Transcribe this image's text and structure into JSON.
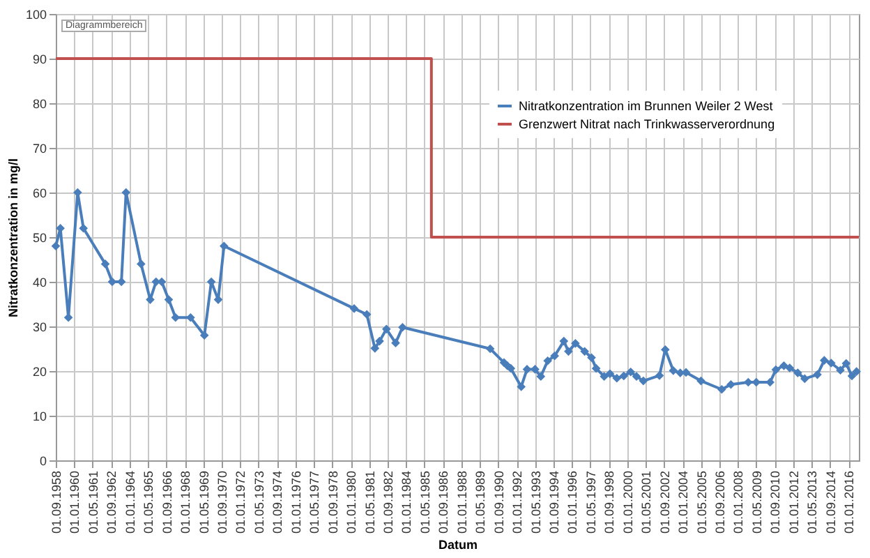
{
  "chart_data": {
    "type": "line",
    "xlabel": "Datum",
    "ylabel": "Nitratkonzentration in mg/l",
    "annotations": [
      "Diagrammbereich"
    ],
    "xlim": [
      "1958-09-01",
      "2016-10-01"
    ],
    "ylim": [
      0,
      100
    ],
    "yticks": [
      0,
      10,
      20,
      30,
      40,
      50,
      60,
      70,
      80,
      90,
      100
    ],
    "xticks": [
      {
        "value": "1958-09-01",
        "label": "01.09.1958"
      },
      {
        "value": "1960-01-01",
        "label": "01.01.1960"
      },
      {
        "value": "1961-05-01",
        "label": "01.05.1961"
      },
      {
        "value": "1962-09-01",
        "label": "01.09.1962"
      },
      {
        "value": "1964-01-01",
        "label": "01.01.1964"
      },
      {
        "value": "1965-05-01",
        "label": "01.05.1965"
      },
      {
        "value": "1966-09-01",
        "label": "01.09.1966"
      },
      {
        "value": "1968-01-01",
        "label": "01.01.1968"
      },
      {
        "value": "1969-05-01",
        "label": "01.05.1969"
      },
      {
        "value": "1970-09-01",
        "label": "01.09.1970"
      },
      {
        "value": "1972-01-01",
        "label": "01.01.1972"
      },
      {
        "value": "1973-05-01",
        "label": "01.05.1973"
      },
      {
        "value": "1974-09-01",
        "label": "01.09.1974"
      },
      {
        "value": "1976-01-01",
        "label": "01.01.1976"
      },
      {
        "value": "1977-05-01",
        "label": "01.05.1977"
      },
      {
        "value": "1978-09-01",
        "label": "01.09.1978"
      },
      {
        "value": "1980-01-01",
        "label": "01.01.1980"
      },
      {
        "value": "1981-05-01",
        "label": "01.05.1981"
      },
      {
        "value": "1982-09-01",
        "label": "01.09.1982"
      },
      {
        "value": "1984-01-01",
        "label": "01.01.1984"
      },
      {
        "value": "1985-05-01",
        "label": "01.05.1985"
      },
      {
        "value": "1986-09-01",
        "label": "01.09.1986"
      },
      {
        "value": "1988-01-01",
        "label": "01.01.1988"
      },
      {
        "value": "1989-05-01",
        "label": "01.05.1989"
      },
      {
        "value": "1990-09-01",
        "label": "01.09.1990"
      },
      {
        "value": "1992-01-01",
        "label": "01.01.1992"
      },
      {
        "value": "1993-05-01",
        "label": "01.05.1993"
      },
      {
        "value": "1994-09-01",
        "label": "01.09.1994"
      },
      {
        "value": "1996-01-01",
        "label": "01.01.1996"
      },
      {
        "value": "1997-05-01",
        "label": "01.05.1997"
      },
      {
        "value": "1998-09-01",
        "label": "01.09.1998"
      },
      {
        "value": "2000-01-01",
        "label": "01.01.2000"
      },
      {
        "value": "2001-05-01",
        "label": "01.05.2001"
      },
      {
        "value": "2002-09-01",
        "label": "01.09.2002"
      },
      {
        "value": "2004-01-01",
        "label": "01.01.2004"
      },
      {
        "value": "2005-05-01",
        "label": "01.05.2005"
      },
      {
        "value": "2006-09-01",
        "label": "01.09.2006"
      },
      {
        "value": "2008-01-01",
        "label": "01.01.2008"
      },
      {
        "value": "2009-05-01",
        "label": "01.05.2009"
      },
      {
        "value": "2010-09-01",
        "label": "01.09.2010"
      },
      {
        "value": "2012-01-01",
        "label": "01.01.2012"
      },
      {
        "value": "2013-05-01",
        "label": "01.05.2013"
      },
      {
        "value": "2014-09-01",
        "label": "01.09.2014"
      },
      {
        "value": "2016-01-01",
        "label": "01.01.2016"
      }
    ],
    "grid": true,
    "legend": "top right",
    "series": [
      {
        "name": "Nitratkonzentration im Brunnen Weiler 2 West",
        "color": "#4a7ebb",
        "marker": "diamond",
        "x": [
          "1958-09",
          "1959-01",
          "1959-08",
          "1960-04",
          "1960-09",
          "1962-04",
          "1962-10",
          "1963-06",
          "1963-10",
          "1964-11",
          "1965-07",
          "1965-12",
          "1966-05",
          "1966-11",
          "1967-05",
          "1968-06",
          "1969-06",
          "1969-12",
          "1970-06",
          "1970-11",
          "1980-04",
          "1981-03",
          "1981-10",
          "1982-02",
          "1982-08",
          "1983-04",
          "1983-10",
          "1990-02",
          "1991-02",
          "1991-05",
          "1991-08",
          "1992-05",
          "1992-10",
          "1993-05",
          "1993-10",
          "1994-04",
          "1994-10",
          "1995-06",
          "1995-10",
          "1996-04",
          "1996-12",
          "1997-06",
          "1997-10",
          "1998-05",
          "1998-10",
          "1999-04",
          "1999-10",
          "2000-04",
          "2000-09",
          "2001-03",
          "2002-05",
          "2002-10",
          "2003-05",
          "2003-11",
          "2004-04",
          "2005-05",
          "2006-11",
          "2007-07",
          "2008-10",
          "2009-05",
          "2010-05",
          "2010-10",
          "2011-05",
          "2011-10",
          "2012-05",
          "2012-11",
          "2013-10",
          "2014-04",
          "2014-10",
          "2015-06",
          "2015-11",
          "2016-04",
          "2016-08"
        ],
        "values": [
          48,
          52,
          32,
          60,
          52,
          44,
          40,
          40,
          60,
          44,
          36,
          40,
          40,
          36,
          32,
          32,
          28,
          40,
          36,
          48,
          34,
          32.7,
          25.1,
          26.7,
          29.4,
          26.3,
          29.8,
          25,
          21.9,
          21.2,
          20.6,
          16.5,
          20.4,
          20.4,
          18.8,
          22.3,
          23.4,
          26.7,
          24.4,
          26.2,
          24.4,
          23,
          20.6,
          18.8,
          19.4,
          18.4,
          18.9,
          19.8,
          18.8,
          17.8,
          19,
          24.8,
          20.1,
          19.6,
          19.7,
          17.8,
          15.9,
          17,
          17.5,
          17.5,
          17.5,
          20.3,
          21.2,
          20.7,
          19.6,
          18.3,
          19.2,
          22.4,
          21.8,
          20.2,
          21.7,
          18.9,
          19.9
        ]
      },
      {
        "name": "Grenzwert Nitrat nach Trinkwasserverordnung",
        "type": "step",
        "color": "#c0504d",
        "marker": "none",
        "x": [
          "1958-09",
          "1985-11",
          "2016-10"
        ],
        "values": [
          90,
          50,
          50
        ]
      }
    ]
  }
}
